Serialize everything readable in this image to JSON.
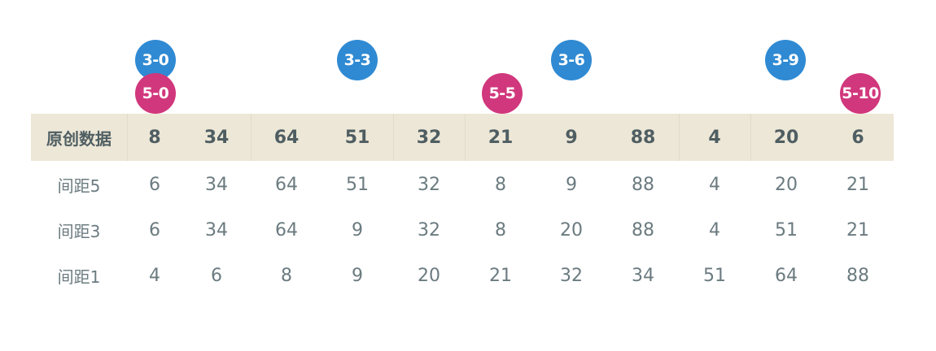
{
  "markers": [
    {
      "text": "3-0",
      "color": "#2f8ad3"
    },
    {
      "text": "3-3",
      "color": "#2f8ad3"
    },
    {
      "text": "3-6",
      "color": "#2f8ad3"
    },
    {
      "text": "3-9",
      "color": "#2f8ad3"
    },
    {
      "text": "5-0",
      "color": "#d1377c"
    },
    {
      "text": "5-5",
      "color": "#d1377c"
    },
    {
      "text": "5-10",
      "color": "#d1377c"
    }
  ],
  "table": {
    "header": {
      "label": "原创数据",
      "values": [
        "8",
        "34",
        "64",
        "51",
        "32",
        "21",
        "9",
        "88",
        "4",
        "20",
        "6"
      ]
    },
    "rows": [
      {
        "label": "间距5",
        "values": [
          "6",
          "34",
          "64",
          "51",
          "32",
          "8",
          "9",
          "88",
          "4",
          "20",
          "21"
        ]
      },
      {
        "label": "间距3",
        "values": [
          "6",
          "34",
          "64",
          "9",
          "32",
          "8",
          "20",
          "88",
          "4",
          "51",
          "21"
        ]
      },
      {
        "label": "间距1",
        "values": [
          "4",
          "6",
          "8",
          "9",
          "20",
          "21",
          "32",
          "34",
          "51",
          "64",
          "88"
        ]
      }
    ]
  },
  "colors": {
    "header_bg": "#ede7d7",
    "text": "#6b7b80",
    "header_text": "#4f5e62",
    "blue_marker": "#2f8ad3",
    "pink_marker": "#d1377c"
  }
}
